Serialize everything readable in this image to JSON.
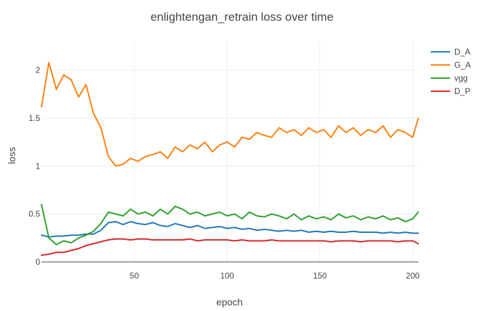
{
  "chart_data": {
    "type": "line",
    "title": "enlightengan_retrain loss over time",
    "xlabel": "epoch",
    "ylabel": "loss",
    "xlim": [
      0,
      203
    ],
    "ylim": [
      0,
      2.3
    ],
    "x_ticks": [
      50,
      100,
      150,
      200
    ],
    "y_ticks": [
      0,
      0.5,
      1,
      1.5,
      2
    ],
    "x_tick_labels": [
      "50",
      "100",
      "150",
      "200"
    ],
    "y_tick_labels": [
      "0",
      "0.5",
      "1",
      "1.5",
      "2"
    ],
    "grid": true,
    "legend_position": "top-right",
    "x": [
      0,
      4,
      8,
      12,
      16,
      20,
      24,
      28,
      32,
      36,
      40,
      44,
      48,
      52,
      56,
      60,
      64,
      68,
      72,
      76,
      80,
      84,
      88,
      92,
      96,
      100,
      104,
      108,
      112,
      116,
      120,
      124,
      128,
      132,
      136,
      140,
      144,
      148,
      152,
      156,
      160,
      164,
      168,
      172,
      176,
      180,
      184,
      188,
      192,
      196,
      200,
      203
    ],
    "series": [
      {
        "name": "D_A",
        "color": "#1f77b4",
        "values": [
          0.28,
          0.26,
          0.27,
          0.27,
          0.28,
          0.28,
          0.29,
          0.29,
          0.33,
          0.41,
          0.42,
          0.39,
          0.42,
          0.4,
          0.39,
          0.41,
          0.38,
          0.37,
          0.4,
          0.38,
          0.36,
          0.38,
          0.35,
          0.36,
          0.37,
          0.35,
          0.36,
          0.34,
          0.35,
          0.33,
          0.34,
          0.33,
          0.32,
          0.33,
          0.32,
          0.33,
          0.31,
          0.32,
          0.31,
          0.32,
          0.31,
          0.31,
          0.32,
          0.31,
          0.31,
          0.31,
          0.3,
          0.31,
          0.3,
          0.31,
          0.3,
          0.3
        ]
      },
      {
        "name": "G_A",
        "color": "#ff7f0e",
        "values": [
          1.62,
          2.08,
          1.8,
          1.95,
          1.9,
          1.72,
          1.85,
          1.55,
          1.4,
          1.1,
          1.0,
          1.02,
          1.08,
          1.05,
          1.1,
          1.12,
          1.15,
          1.08,
          1.2,
          1.15,
          1.22,
          1.18,
          1.25,
          1.15,
          1.22,
          1.25,
          1.2,
          1.3,
          1.28,
          1.35,
          1.32,
          1.3,
          1.4,
          1.35,
          1.38,
          1.32,
          1.4,
          1.35,
          1.38,
          1.3,
          1.42,
          1.35,
          1.4,
          1.32,
          1.38,
          1.35,
          1.42,
          1.3,
          1.38,
          1.35,
          1.3,
          1.5
        ]
      },
      {
        "name": "vgg",
        "color": "#2ca02c",
        "values": [
          0.6,
          0.25,
          0.18,
          0.22,
          0.2,
          0.25,
          0.28,
          0.32,
          0.4,
          0.52,
          0.5,
          0.48,
          0.55,
          0.5,
          0.52,
          0.48,
          0.55,
          0.5,
          0.58,
          0.55,
          0.5,
          0.52,
          0.48,
          0.5,
          0.52,
          0.48,
          0.5,
          0.45,
          0.52,
          0.48,
          0.47,
          0.5,
          0.48,
          0.45,
          0.5,
          0.44,
          0.48,
          0.45,
          0.47,
          0.44,
          0.5,
          0.46,
          0.48,
          0.44,
          0.47,
          0.45,
          0.48,
          0.44,
          0.46,
          0.42,
          0.45,
          0.52
        ]
      },
      {
        "name": "D_P",
        "color": "#d62728",
        "values": [
          0.07,
          0.08,
          0.1,
          0.1,
          0.12,
          0.14,
          0.17,
          0.19,
          0.21,
          0.23,
          0.24,
          0.24,
          0.23,
          0.24,
          0.24,
          0.23,
          0.23,
          0.23,
          0.23,
          0.23,
          0.24,
          0.22,
          0.23,
          0.23,
          0.23,
          0.23,
          0.22,
          0.23,
          0.22,
          0.22,
          0.22,
          0.23,
          0.22,
          0.22,
          0.22,
          0.22,
          0.22,
          0.22,
          0.22,
          0.21,
          0.22,
          0.22,
          0.22,
          0.21,
          0.22,
          0.22,
          0.22,
          0.22,
          0.21,
          0.22,
          0.22,
          0.19
        ]
      }
    ]
  }
}
